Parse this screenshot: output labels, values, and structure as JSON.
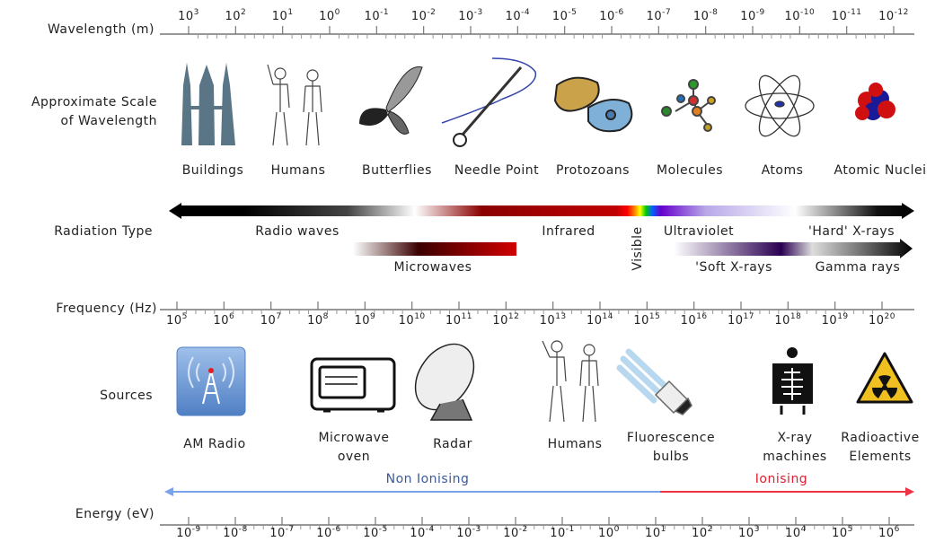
{
  "row_labels": {
    "wavelength": "Wavelength (m)",
    "scale": [
      "Approximate Scale",
      "of Wavelength"
    ],
    "radiation": "Radiation Type",
    "frequency": "Frequency (Hz)",
    "sources": "Sources",
    "energy": "Energy (eV)"
  },
  "wavelength": {
    "base": "10",
    "exponents": [
      "3",
      "2",
      "1",
      "0",
      "-1",
      "-2",
      "-3",
      "-4",
      "-5",
      "-6",
      "-7",
      "-8",
      "-9",
      "-10",
      "-11",
      "-12"
    ]
  },
  "scale_items": [
    "Buildings",
    "Humans",
    "Butterflies",
    "Needle Point",
    "Protozoans",
    "Molecules",
    "Atoms",
    "Atomic Nuclei"
  ],
  "radiation_types": [
    "Radio waves",
    "Infrared",
    "Ultraviolet",
    "'Hard' X-rays",
    "Microwaves",
    "'Soft X-rays",
    "Gamma rays",
    "Visible"
  ],
  "frequency": {
    "base": "10",
    "exponents": [
      "5",
      "6",
      "7",
      "8",
      "9",
      "10",
      "11",
      "12",
      "13",
      "14",
      "15",
      "16",
      "17",
      "18",
      "19",
      "20"
    ]
  },
  "sources": [
    [
      "AM Radio"
    ],
    [
      "Microwave",
      "oven"
    ],
    [
      "Radar"
    ],
    [
      "Humans"
    ],
    [
      "Fluorescence",
      "bulbs"
    ],
    [
      "X-ray",
      "machines"
    ],
    [
      "Radioactive",
      "Elements"
    ]
  ],
  "energy": {
    "base": "10",
    "exponents": [
      "-9",
      "-8",
      "-7",
      "-6",
      "-5",
      "-4",
      "-3",
      "-2",
      "-1",
      "0",
      "1",
      "2",
      "3",
      "4",
      "5",
      "6"
    ],
    "non_ionising": "Non Ionising",
    "ionising": "Ionising"
  }
}
